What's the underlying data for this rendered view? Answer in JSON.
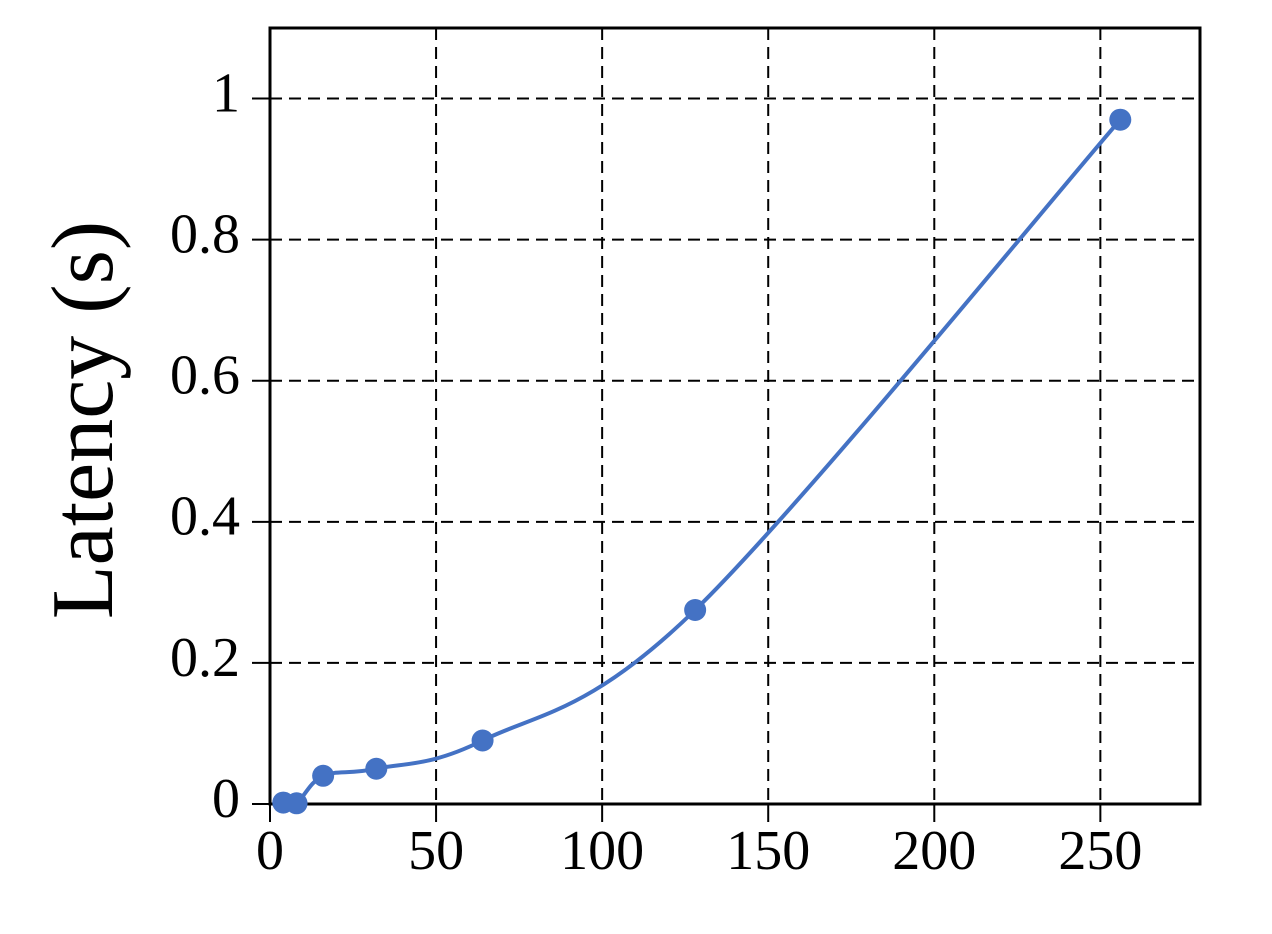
{
  "chart_data": {
    "type": "line",
    "y_label": "Latency (s)",
    "x": [
      4,
      8,
      16,
      32,
      64,
      128,
      256
    ],
    "series": [
      {
        "name": "Latency",
        "color": "#4472c4",
        "values": [
          0.002,
          0.001,
          0.04,
          0.05,
          0.09,
          0.275,
          0.97
        ]
      }
    ],
    "xlim": [
      0,
      280
    ],
    "xticks": [
      0,
      50,
      100,
      150,
      200,
      250
    ],
    "ylim": [
      0,
      1.1
    ],
    "yticks": [
      0,
      0.2,
      0.4,
      0.6,
      0.8,
      1
    ],
    "grid": true,
    "smooth": true
  }
}
